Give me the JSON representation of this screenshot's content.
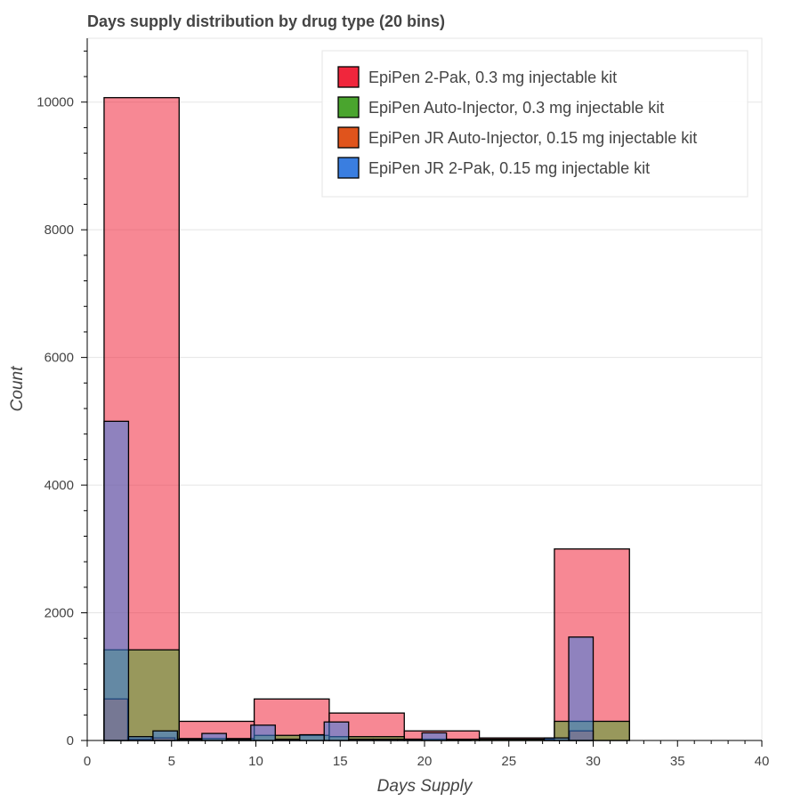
{
  "chart_data": {
    "type": "histogram",
    "title": "Days supply distribution by drug type (20 bins)",
    "xlabel": "Days Supply",
    "ylabel": "Count",
    "xlim": [
      0,
      40
    ],
    "ylim": [
      0,
      11000
    ],
    "x_ticks": [
      0,
      5,
      10,
      15,
      20,
      25,
      30,
      35,
      40
    ],
    "y_ticks": [
      0,
      2000,
      4000,
      6000,
      8000,
      10000
    ],
    "grid": true,
    "legend_position": "top-right",
    "series": [
      {
        "name": "EpiPen 2-Pak, 0.3 mg injectable kit",
        "color": "#f0263c",
        "bins": [
          {
            "x0": 1.0,
            "x1": 5.45,
            "count": 10070
          },
          {
            "x0": 5.45,
            "x1": 9.9,
            "count": 300
          },
          {
            "x0": 9.9,
            "x1": 14.35,
            "count": 650
          },
          {
            "x0": 14.35,
            "x1": 18.8,
            "count": 430
          },
          {
            "x0": 18.8,
            "x1": 23.25,
            "count": 150
          },
          {
            "x0": 23.25,
            "x1": 27.7,
            "count": 40
          },
          {
            "x0": 27.7,
            "x1": 32.15,
            "count": 3000
          }
        ]
      },
      {
        "name": "EpiPen Auto-Injector, 0.3 mg injectable kit",
        "color": "#4aa52e",
        "bins": [
          {
            "x0": 1.0,
            "x1": 5.45,
            "count": 1420
          },
          {
            "x0": 5.45,
            "x1": 9.9,
            "count": 30
          },
          {
            "x0": 9.9,
            "x1": 14.35,
            "count": 80
          },
          {
            "x0": 14.35,
            "x1": 18.8,
            "count": 60
          },
          {
            "x0": 18.8,
            "x1": 23.25,
            "count": 20
          },
          {
            "x0": 23.25,
            "x1": 27.7,
            "count": 20
          },
          {
            "x0": 27.7,
            "x1": 32.15,
            "count": 300
          }
        ]
      },
      {
        "name": "EpiPen JR Auto-Injector, 0.15 mg injectable kit",
        "color": "#e0541c",
        "bins": [
          {
            "x0": 1.0,
            "x1": 2.4,
            "count": 650
          },
          {
            "x0": 2.4,
            "x1": 3.8,
            "count": 20
          },
          {
            "x0": 3.8,
            "x1": 5.2,
            "count": 40
          },
          {
            "x0": 28.6,
            "x1": 30.0,
            "count": 150
          }
        ]
      },
      {
        "name": "EpiPen JR 2-Pak, 0.15 mg injectable kit",
        "color": "#3a7ee0",
        "bins": [
          {
            "x0": 1.0,
            "x1": 2.45,
            "count": 5000
          },
          {
            "x0": 2.45,
            "x1": 3.9,
            "count": 60
          },
          {
            "x0": 3.9,
            "x1": 5.35,
            "count": 150
          },
          {
            "x0": 5.35,
            "x1": 6.8,
            "count": 20
          },
          {
            "x0": 6.8,
            "x1": 8.25,
            "count": 110
          },
          {
            "x0": 8.25,
            "x1": 9.7,
            "count": 20
          },
          {
            "x0": 9.7,
            "x1": 11.15,
            "count": 240
          },
          {
            "x0": 11.15,
            "x1": 12.6,
            "count": 20
          },
          {
            "x0": 12.6,
            "x1": 14.05,
            "count": 90
          },
          {
            "x0": 14.05,
            "x1": 15.5,
            "count": 290
          },
          {
            "x0": 15.5,
            "x1": 16.95,
            "count": 20
          },
          {
            "x0": 16.95,
            "x1": 18.4,
            "count": 20
          },
          {
            "x0": 18.4,
            "x1": 19.85,
            "count": 20
          },
          {
            "x0": 19.85,
            "x1": 21.3,
            "count": 120
          },
          {
            "x0": 21.3,
            "x1": 22.75,
            "count": 10
          },
          {
            "x0": 27.1,
            "x1": 28.55,
            "count": 40
          },
          {
            "x0": 28.55,
            "x1": 30.0,
            "count": 1620
          }
        ]
      }
    ]
  }
}
